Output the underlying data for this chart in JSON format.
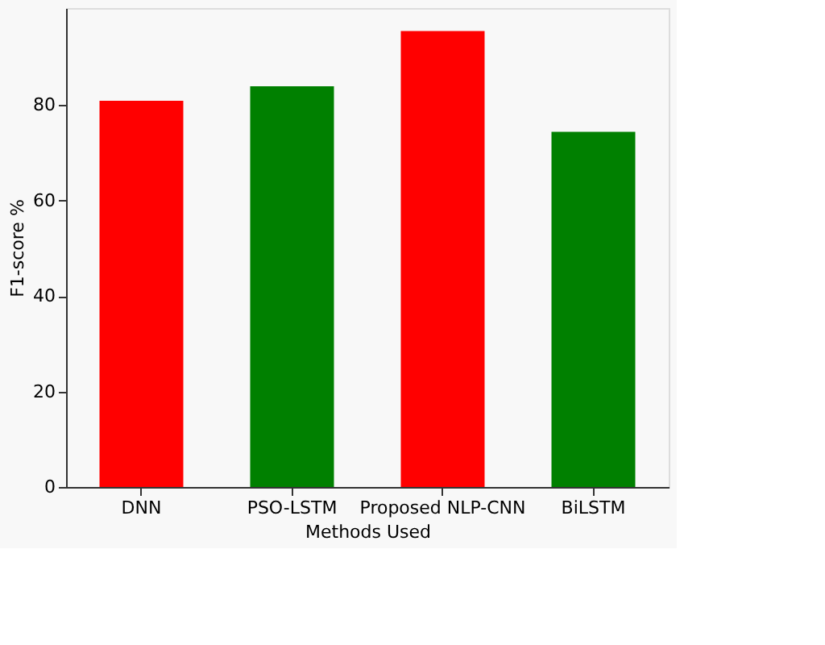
{
  "chart_data": {
    "type": "bar",
    "xlabel": "Methods Used",
    "ylabel": "F1-score %",
    "categories": [
      "DNN",
      "PSO-LSTM",
      "Proposed NLP-CNN",
      "BiLSTM"
    ],
    "values": [
      80.9,
      83.9,
      95.5,
      74.4
    ],
    "colors": [
      "#ff0000",
      "#008000",
      "#ff0000",
      "#008000"
    ],
    "ylim": [
      0,
      100.3
    ],
    "yticks": [
      0,
      20,
      40,
      60,
      80
    ],
    "grid": false
  }
}
